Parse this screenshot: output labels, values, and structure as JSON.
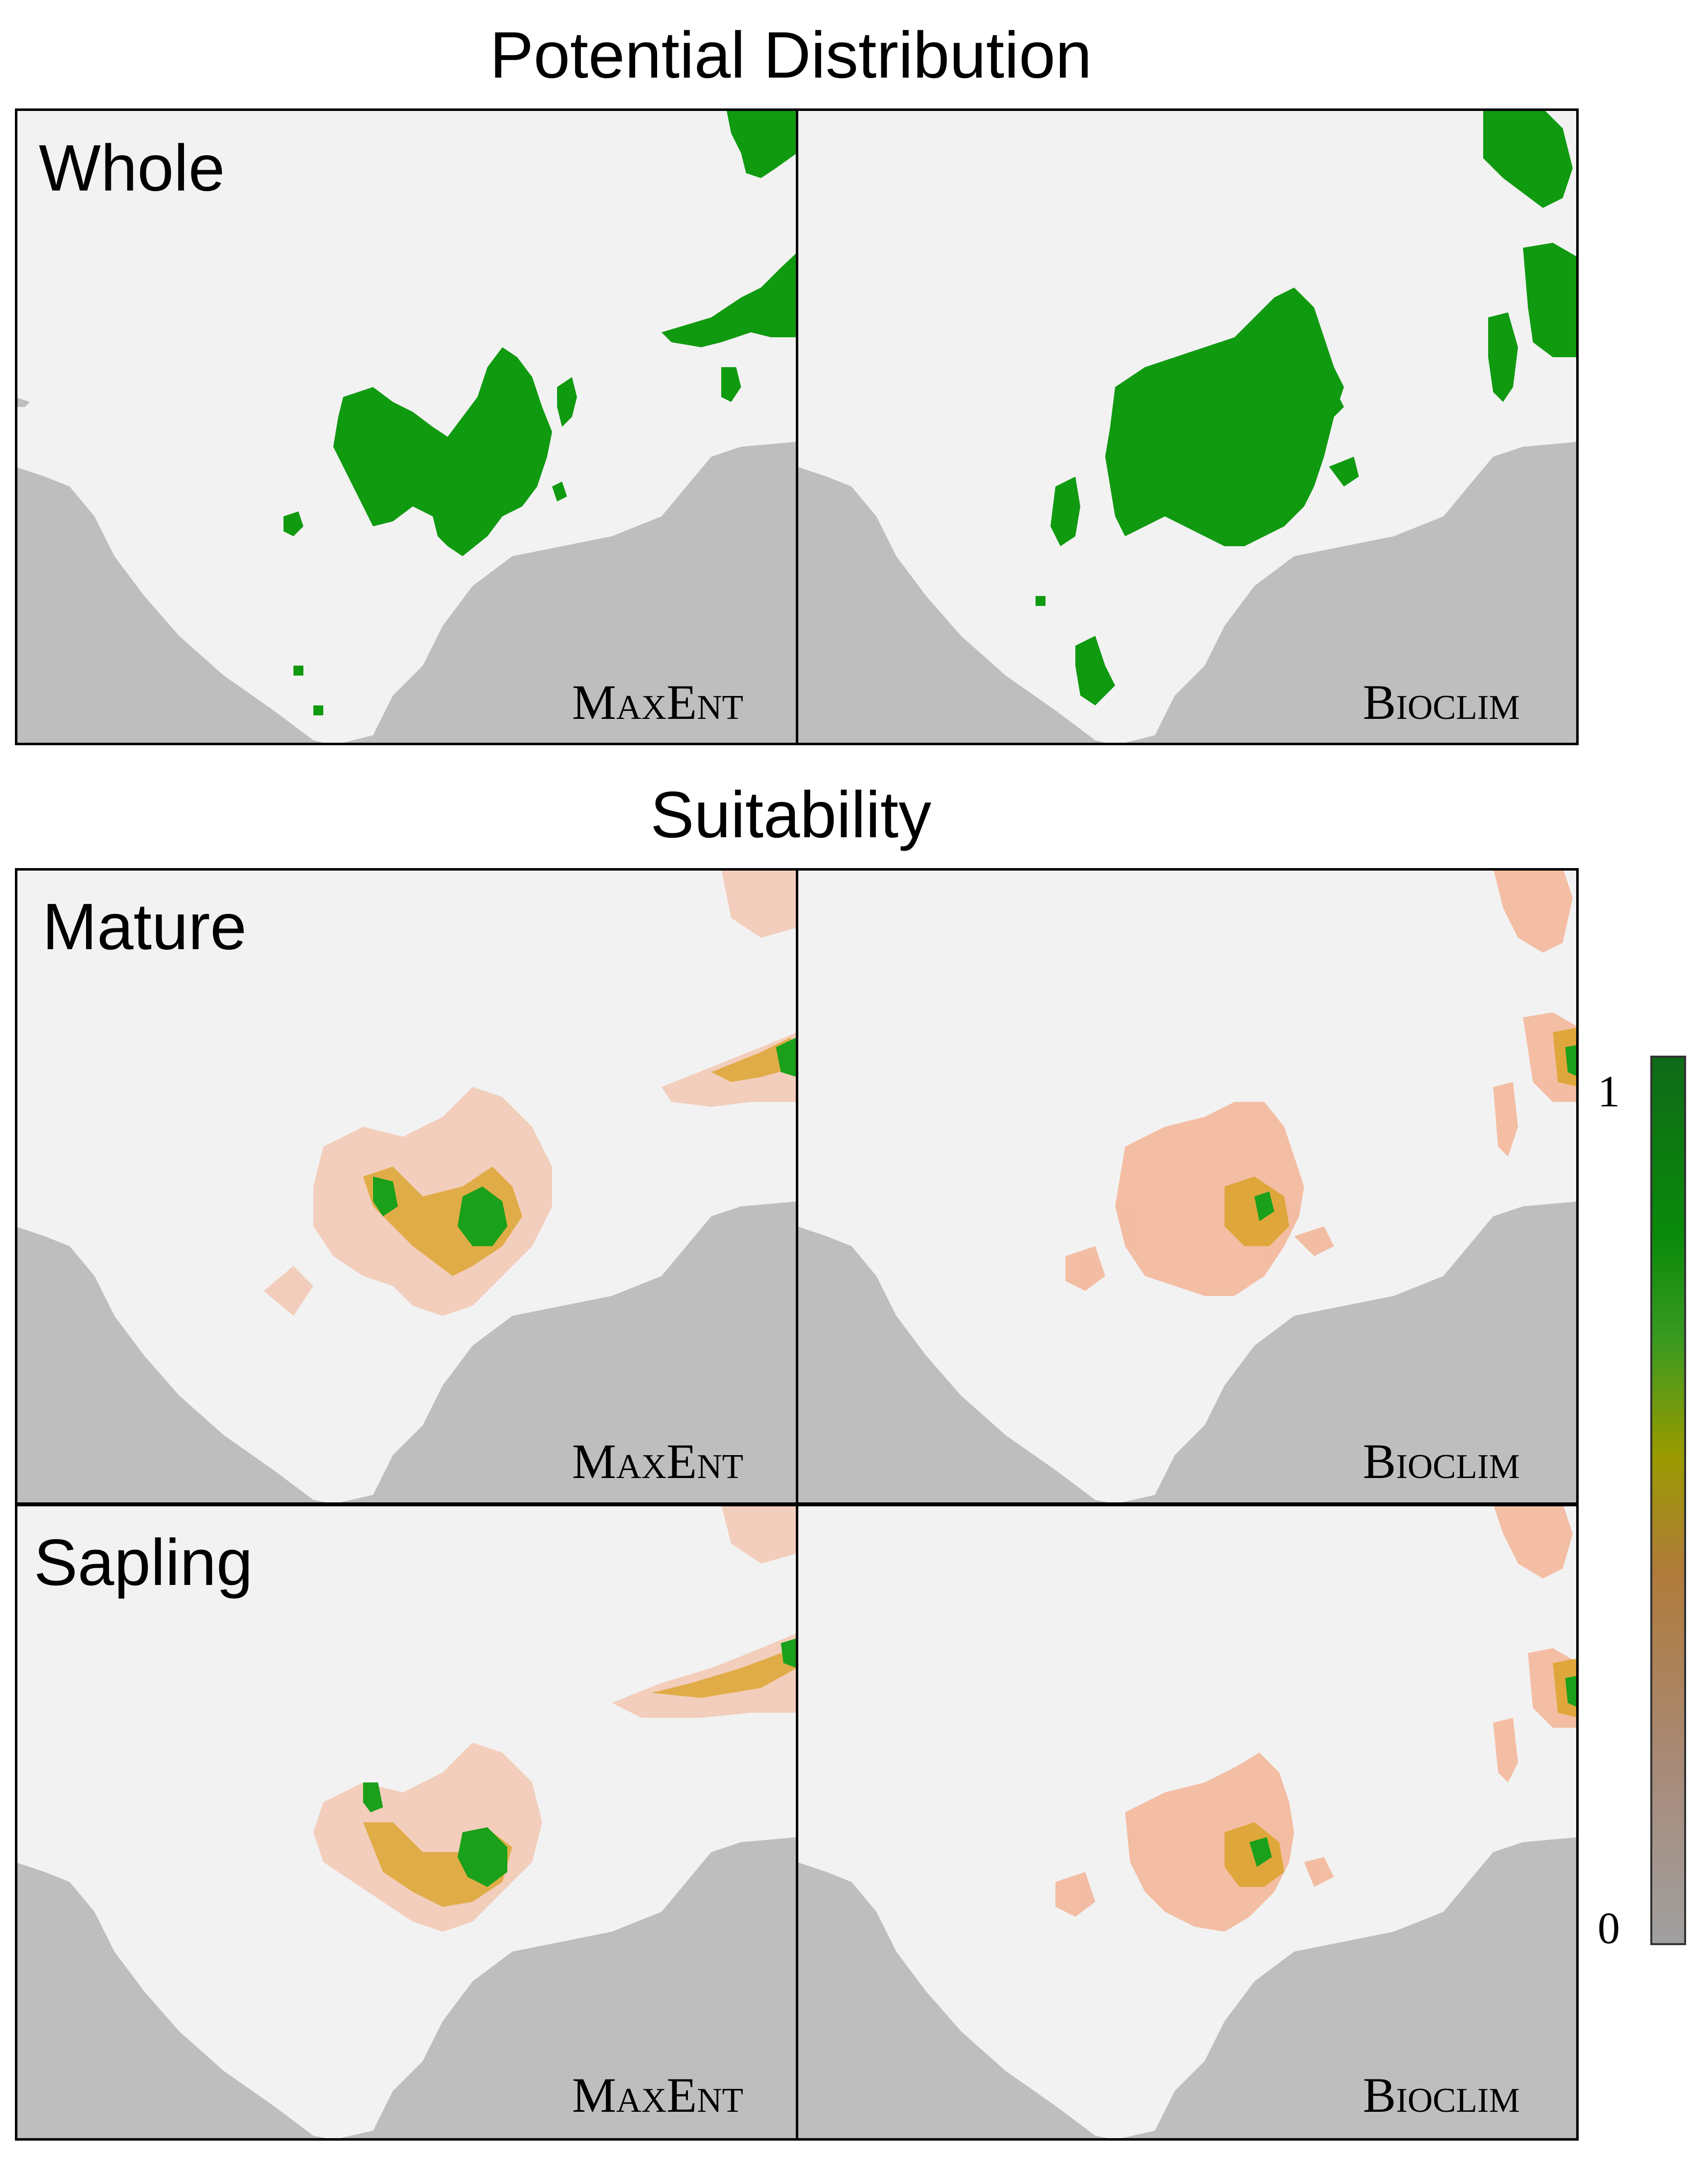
{
  "sections": {
    "potential_distribution": "Potential Distribution",
    "suitability": "Suitability"
  },
  "rows": {
    "whole": "Whole",
    "mature": "Mature",
    "sapling": "Sapling"
  },
  "models": {
    "maxent": "MaxEnt",
    "bioclim": "Bioclim"
  },
  "legend": {
    "max": "1",
    "min": "0",
    "colors": [
      "#a0a0a0",
      "#a88a78",
      "#b07a3a",
      "#9a9a00",
      "#3a9a20",
      "#0a8a0a",
      "#0f6a18"
    ]
  },
  "colors": {
    "background": "#f2f2f2",
    "sea": "#bebebe",
    "presence": "#109a10",
    "low_suitability": "#f4b090",
    "high_suitability": "#1aa01a"
  }
}
